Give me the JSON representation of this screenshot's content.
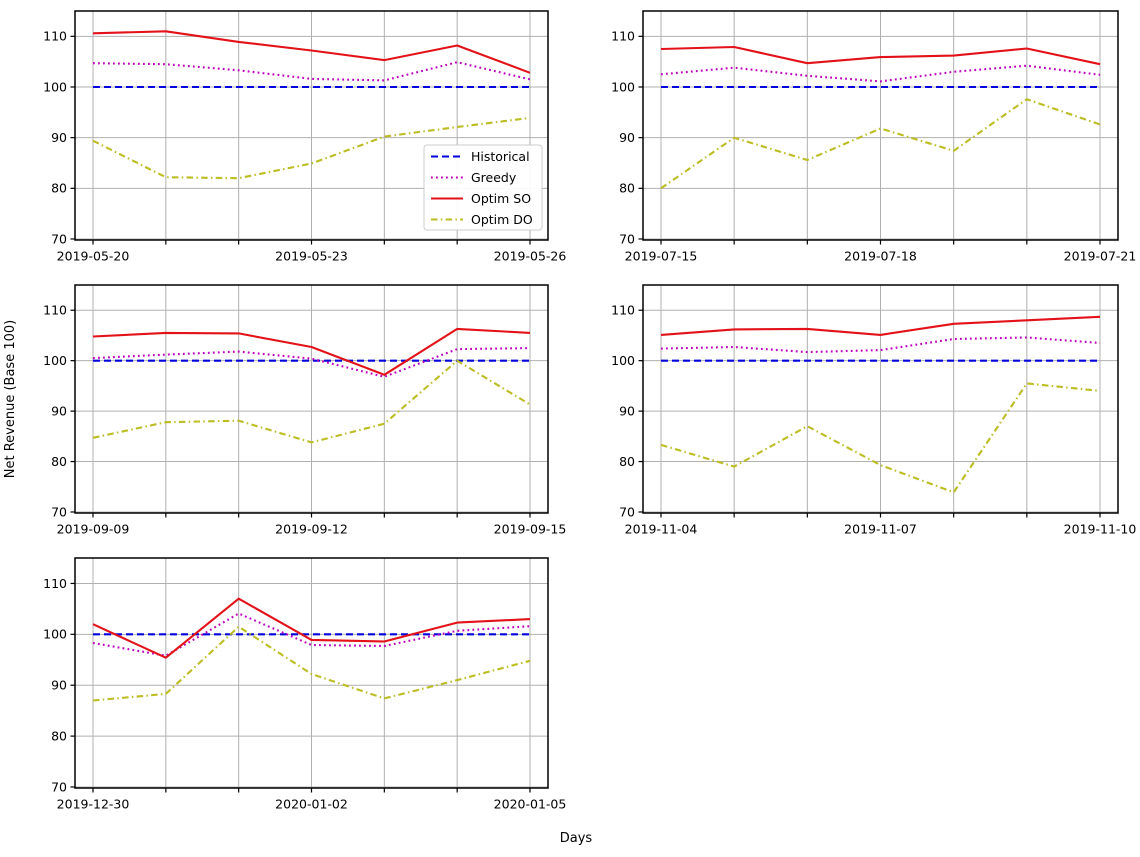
{
  "figure": {
    "xlabel": "Days",
    "ylabel": "Net Revenue (Base 100)",
    "background": "#ffffff",
    "grid_color": "#b0b0b0",
    "series_styles": [
      {
        "name": "Historical",
        "color": "#0202dd",
        "linestyle": "dashed"
      },
      {
        "name": "Greedy",
        "color": "#bf00bf",
        "linestyle": "dotted"
      },
      {
        "name": "Optim SO",
        "color": "#e31219",
        "linestyle": "solid"
      },
      {
        "name": "Optim DO",
        "color": "#bcbd22",
        "linestyle": "dashdot"
      }
    ],
    "legend": {
      "entries": [
        "Historical",
        "Greedy",
        "Optim SO",
        "Optim DO"
      ],
      "position": "lower right of first subplot"
    }
  },
  "chart_data": [
    {
      "type": "line",
      "grid": true,
      "ylim": [
        70,
        115
      ],
      "yticks": [
        70,
        80,
        90,
        100,
        110
      ],
      "x": [
        "2019-05-20",
        "2019-05-21",
        "2019-05-22",
        "2019-05-23",
        "2019-05-24",
        "2019-05-25",
        "2019-05-26"
      ],
      "x_tick_labels": [
        "2019-05-20",
        "2019-05-23",
        "2019-05-26"
      ],
      "x_tick_positions": [
        0,
        3,
        6
      ],
      "legend_visible": true,
      "series": [
        {
          "name": "Historical",
          "values": [
            100,
            100,
            100,
            100,
            100,
            100,
            100
          ]
        },
        {
          "name": "Greedy",
          "values": [
            104.7,
            104.5,
            103.3,
            101.6,
            101.3,
            104.9,
            101.5
          ]
        },
        {
          "name": "Optim SO",
          "values": [
            110.6,
            111.0,
            108.9,
            107.2,
            105.3,
            108.2,
            102.8
          ]
        },
        {
          "name": "Optim DO",
          "values": [
            89.4,
            82.2,
            82.0,
            84.9,
            90.2,
            92.1,
            93.9
          ]
        }
      ]
    },
    {
      "type": "line",
      "grid": true,
      "ylim": [
        70,
        115
      ],
      "yticks": [
        70,
        80,
        90,
        100,
        110
      ],
      "x": [
        "2019-07-15",
        "2019-07-16",
        "2019-07-17",
        "2019-07-18",
        "2019-07-19",
        "2019-07-20",
        "2019-07-21"
      ],
      "x_tick_labels": [
        "2019-07-15",
        "2019-07-18",
        "2019-07-21"
      ],
      "x_tick_positions": [
        0,
        3,
        6
      ],
      "legend_visible": false,
      "series": [
        {
          "name": "Historical",
          "values": [
            100,
            100,
            100,
            100,
            100,
            100,
            100
          ]
        },
        {
          "name": "Greedy",
          "values": [
            102.5,
            103.8,
            102.2,
            101.1,
            103.0,
            104.2,
            102.4
          ]
        },
        {
          "name": "Optim SO",
          "values": [
            107.5,
            107.9,
            104.7,
            105.9,
            106.2,
            107.6,
            104.5
          ]
        },
        {
          "name": "Optim DO",
          "values": [
            80.0,
            90.0,
            85.6,
            91.8,
            87.4,
            97.6,
            92.6
          ]
        }
      ]
    },
    {
      "type": "line",
      "grid": true,
      "ylim": [
        70,
        115
      ],
      "yticks": [
        70,
        80,
        90,
        100,
        110
      ],
      "x": [
        "2019-09-09",
        "2019-09-10",
        "2019-09-11",
        "2019-09-12",
        "2019-09-13",
        "2019-09-14",
        "2019-09-15"
      ],
      "x_tick_labels": [
        "2019-09-09",
        "2019-09-12",
        "2019-09-15"
      ],
      "x_tick_positions": [
        0,
        3,
        6
      ],
      "legend_visible": false,
      "series": [
        {
          "name": "Historical",
          "values": [
            100,
            100,
            100,
            100,
            100,
            100,
            100
          ]
        },
        {
          "name": "Greedy",
          "values": [
            100.5,
            101.2,
            101.8,
            100.4,
            96.8,
            102.3,
            102.5
          ]
        },
        {
          "name": "Optim SO",
          "values": [
            104.8,
            105.5,
            105.4,
            102.7,
            97.2,
            106.3,
            105.5
          ]
        },
        {
          "name": "Optim DO",
          "values": [
            84.7,
            87.8,
            88.1,
            83.8,
            87.5,
            100.0,
            91.3
          ]
        }
      ]
    },
    {
      "type": "line",
      "grid": true,
      "ylim": [
        70,
        115
      ],
      "yticks": [
        70,
        80,
        90,
        100,
        110
      ],
      "x": [
        "2019-11-04",
        "2019-11-05",
        "2019-11-06",
        "2019-11-07",
        "2019-11-08",
        "2019-11-09",
        "2019-11-10"
      ],
      "x_tick_labels": [
        "2019-11-04",
        "2019-11-07",
        "2019-11-10"
      ],
      "x_tick_positions": [
        0,
        3,
        6
      ],
      "legend_visible": false,
      "series": [
        {
          "name": "Historical",
          "values": [
            100,
            100,
            100,
            100,
            100,
            100,
            100
          ]
        },
        {
          "name": "Greedy",
          "values": [
            102.4,
            102.7,
            101.7,
            102.1,
            104.3,
            104.6,
            103.5
          ]
        },
        {
          "name": "Optim SO",
          "values": [
            105.1,
            106.2,
            106.3,
            105.1,
            107.3,
            108.0,
            108.7
          ]
        },
        {
          "name": "Optim DO",
          "values": [
            83.3,
            79.0,
            87.0,
            79.3,
            73.9,
            95.5,
            94.0
          ]
        }
      ]
    },
    {
      "type": "line",
      "grid": true,
      "ylim": [
        70,
        115
      ],
      "yticks": [
        70,
        80,
        90,
        100,
        110
      ],
      "x": [
        "2019-12-30",
        "2019-12-31",
        "2020-01-01",
        "2020-01-02",
        "2020-01-03",
        "2020-01-04",
        "2020-01-05"
      ],
      "x_tick_labels": [
        "2019-12-30",
        "2020-01-02",
        "2020-01-05"
      ],
      "x_tick_positions": [
        0,
        3,
        6
      ],
      "legend_visible": false,
      "series": [
        {
          "name": "Historical",
          "values": [
            100,
            100,
            100,
            100,
            100,
            100,
            100
          ]
        },
        {
          "name": "Greedy",
          "values": [
            98.3,
            95.8,
            104.1,
            97.9,
            97.7,
            100.7,
            101.6
          ]
        },
        {
          "name": "Optim SO",
          "values": [
            102.0,
            95.4,
            107.0,
            98.9,
            98.6,
            102.3,
            103.0
          ]
        },
        {
          "name": "Optim DO",
          "values": [
            87.0,
            88.3,
            101.5,
            92.2,
            87.4,
            91.0,
            94.8
          ]
        }
      ]
    }
  ]
}
